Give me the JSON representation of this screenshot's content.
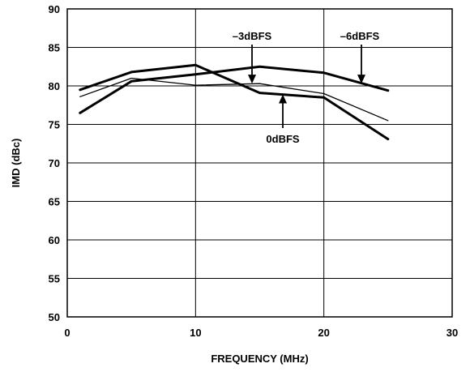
{
  "chart_data": {
    "type": "line",
    "xlabel": "FREQUENCY (MHz)",
    "ylabel": "IMD (dBc)",
    "xlim": [
      0,
      30
    ],
    "ylim": [
      50,
      90
    ],
    "x_ticks": [
      0,
      10,
      20,
      30
    ],
    "y_ticks": [
      50,
      55,
      60,
      65,
      70,
      75,
      80,
      85,
      90
    ],
    "grid": true,
    "series": [
      {
        "name": "0dBFS",
        "x": [
          1,
          5,
          10,
          15,
          20,
          25
        ],
        "y": [
          79.5,
          81.8,
          82.7,
          79.1,
          78.5,
          73.1
        ],
        "weight": "heavy"
      },
      {
        "name": "–3dBFS",
        "x": [
          1,
          5,
          10,
          15,
          20,
          25
        ],
        "y": [
          78.6,
          81.0,
          80.1,
          80.3,
          79.0,
          75.5
        ],
        "weight": "thin"
      },
      {
        "name": "–6dBFS",
        "x": [
          1,
          5,
          10,
          15,
          20,
          25
        ],
        "y": [
          76.5,
          80.6,
          81.5,
          82.5,
          81.7,
          79.4
        ],
        "weight": "heavy"
      }
    ],
    "annotations": [
      {
        "text": "–3dBFS",
        "arrow_to": [
          14.7,
          80.3
        ]
      },
      {
        "text": "–6dBFS",
        "arrow_to": [
          23.0,
          80.3
        ]
      },
      {
        "text": "0dBFS",
        "arrow_to": [
          16.7,
          78.9
        ]
      }
    ]
  }
}
